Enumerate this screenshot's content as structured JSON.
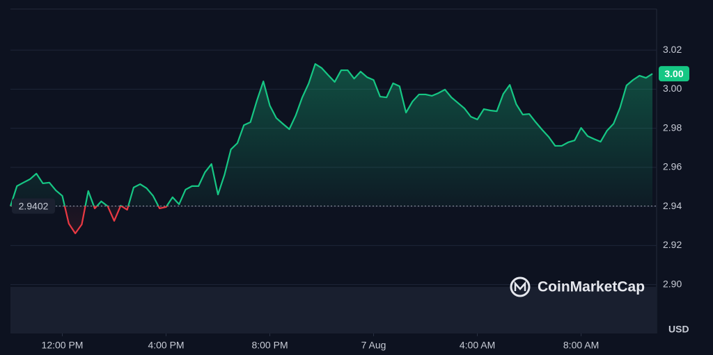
{
  "chart_data": {
    "type": "line",
    "x": [
      10,
      10.25,
      10.5,
      10.75,
      11,
      11.25,
      11.5,
      11.75,
      12,
      12.25,
      12.5,
      12.75,
      13,
      13.25,
      13.5,
      13.75,
      14,
      14.25,
      14.5,
      14.75,
      15,
      15.25,
      15.5,
      15.75,
      16,
      16.25,
      16.5,
      16.75,
      17,
      17.25,
      17.5,
      17.75,
      18,
      18.25,
      18.5,
      18.75,
      19,
      19.25,
      19.5,
      19.75,
      20,
      20.25,
      20.5,
      20.75,
      21,
      21.25,
      21.5,
      21.75,
      22,
      22.25,
      22.5,
      22.75,
      23,
      23.25,
      23.5,
      23.75,
      24,
      24.25,
      24.5,
      24.75,
      25,
      25.25,
      25.5,
      25.75,
      26,
      26.25,
      26.5,
      26.75,
      27,
      27.25,
      27.5,
      27.75,
      28,
      28.25,
      28.5,
      28.75,
      29,
      29.25,
      29.5,
      29.75,
      30,
      30.25,
      30.5,
      30.75,
      31,
      31.25,
      31.5,
      31.75,
      32,
      32.25,
      32.5,
      32.75,
      33,
      33.25,
      33.5,
      33.75,
      34,
      34.25,
      34.5,
      34.75
    ],
    "series": [
      {
        "color": "#16c784",
        "negative_color": "#ea3943",
        "values": [
          2.9401,
          2.9504,
          2.9522,
          2.9539,
          2.9568,
          2.9518,
          2.9522,
          2.9482,
          2.9454,
          2.9312,
          2.9262,
          2.9308,
          2.9479,
          2.939,
          2.9426,
          2.9401,
          2.9326,
          2.9404,
          2.9383,
          2.9497,
          2.9514,
          2.9493,
          2.9454,
          2.939,
          2.9397,
          2.9447,
          2.9411,
          2.9486,
          2.9504,
          2.9504,
          2.9575,
          2.9617,
          2.9461,
          2.9561,
          2.9692,
          2.9724,
          2.9816,
          2.9831,
          2.9941,
          3.004,
          2.9916,
          2.9852,
          2.9823,
          2.9795,
          2.9866,
          2.9958,
          3.003,
          3.0129,
          3.0108,
          3.0072,
          3.0037,
          3.0097,
          3.0097,
          3.0054,
          3.009,
          3.0061,
          3.0047,
          2.9962,
          2.9958,
          3.003,
          3.0015,
          2.988,
          2.9937,
          2.9973,
          2.9973,
          2.9966,
          2.998,
          2.9998,
          2.9958,
          2.993,
          2.9902,
          2.9859,
          2.9845,
          2.9898,
          2.9891,
          2.9887,
          2.9976,
          3.0022,
          2.9923,
          2.987,
          2.9873,
          2.9831,
          2.9792,
          2.9756,
          2.971,
          2.971,
          2.9728,
          2.9738,
          2.9802,
          2.976,
          2.9745,
          2.9731,
          2.9788,
          2.9823,
          2.9905,
          3.0019,
          3.0047,
          3.0069,
          3.0058,
          3.0079
        ]
      }
    ],
    "baseline": 2.9402,
    "current_price_label": "3.00",
    "xlim": [
      10,
      34.91
    ],
    "xticks": [
      {
        "value": 12,
        "label": "12:00 PM"
      },
      {
        "value": 16,
        "label": "4:00 PM"
      },
      {
        "value": 20,
        "label": "8:00 PM"
      },
      {
        "value": 24,
        "label": "7 Aug"
      },
      {
        "value": 28,
        "label": "4:00 AM"
      },
      {
        "value": 32,
        "label": "8:00 AM"
      }
    ],
    "ylim": [
      2.875,
      3.041
    ],
    "yticks": [
      {
        "value": 2.9,
        "label": "2.90"
      },
      2.92,
      2.94,
      2.96,
      2.98,
      {
        "value": 3,
        "label": "3.00"
      },
      3.02
    ],
    "y_unit": "USD",
    "grid": true,
    "watermark": "CoinMarketCap"
  }
}
